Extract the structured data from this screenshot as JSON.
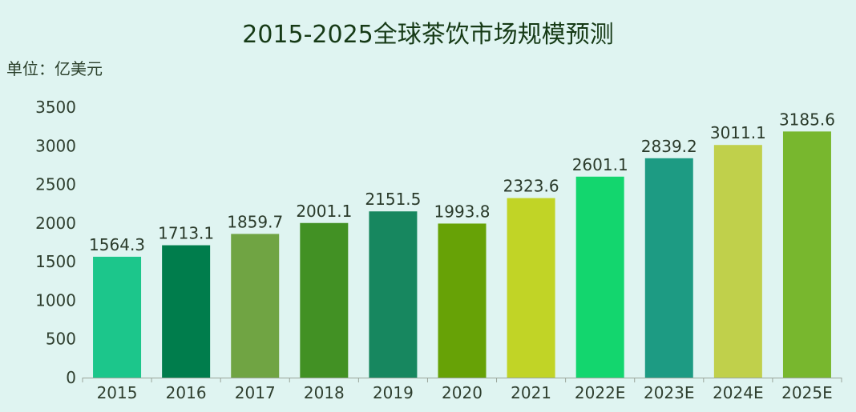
{
  "chart_data": {
    "type": "bar",
    "title": "2015-2025全球茶饮市场规模预测",
    "unit_label": "单位：亿美元",
    "categories": [
      "2015",
      "2016",
      "2017",
      "2018",
      "2019",
      "2020",
      "2021",
      "2022E",
      "2023E",
      "2024E",
      "2025E"
    ],
    "values": [
      1564.3,
      1713.1,
      1859.7,
      2001.1,
      2151.5,
      1993.8,
      2323.6,
      2601.1,
      2839.2,
      3011.1,
      3185.6
    ],
    "value_labels": [
      "1564.3",
      "1713.1",
      "1859.7",
      "2001.1",
      "2151.5",
      "1993.8",
      "2323.6",
      "2601.1",
      "2839.2",
      "3011.1",
      "3185.6"
    ],
    "colors": [
      "#1cc68b",
      "#007d4c",
      "#70a443",
      "#429124",
      "#17875f",
      "#67a206",
      "#c1d426",
      "#13d66e",
      "#1d9b83",
      "#c0d04b",
      "#78b72e"
    ],
    "y_ticks": [
      "0",
      "500",
      "1000",
      "1500",
      "2000",
      "2500",
      "3000",
      "3500"
    ],
    "ylim": [
      0,
      3500
    ],
    "grid": false,
    "xlabel": "",
    "ylabel": ""
  }
}
